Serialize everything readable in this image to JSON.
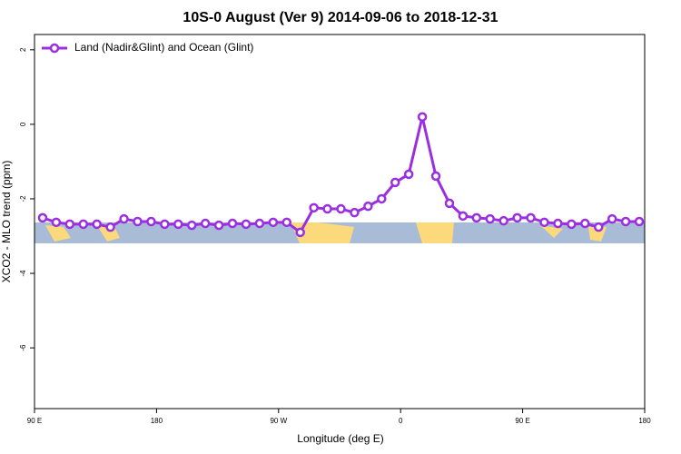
{
  "chart_data": {
    "type": "line",
    "title": "10S-0 August (Ver 9)   2014-09-06 to 2018-12-31",
    "xlabel": "Longitude (deg E)",
    "ylabel": "XCO2 - MLO trend (ppm)",
    "xlim": [
      90,
      540
    ],
    "ylim": [
      -7.63,
      2.41
    ],
    "xticks": [
      {
        "value": 90,
        "label": "90 E"
      },
      {
        "value": 180,
        "label": "180"
      },
      {
        "value": 270,
        "label": "90 W"
      },
      {
        "value": 360,
        "label": "0"
      },
      {
        "value": 450,
        "label": "90 E"
      },
      {
        "value": 540,
        "label": "180"
      }
    ],
    "yticks": [
      2,
      0,
      -2,
      -4,
      -6
    ],
    "legend": "top-left",
    "x": [
      96,
      106,
      116,
      126,
      136,
      146,
      156,
      166,
      176,
      186,
      196,
      206,
      216,
      226,
      236,
      246,
      256,
      266,
      276,
      286,
      296,
      306,
      316,
      326,
      336,
      346,
      356,
      366,
      376,
      386,
      396,
      406,
      416,
      426,
      436,
      446,
      456,
      466,
      476,
      486,
      496,
      506,
      516,
      526,
      536
    ],
    "series": [
      {
        "name": "Land (Nadir&Glint) and Ocean (Glint)",
        "color": "#9b2fe0",
        "values": [
          -2.51,
          -2.63,
          -2.68,
          -2.68,
          -2.68,
          -2.76,
          -2.54,
          -2.61,
          -2.61,
          -2.68,
          -2.68,
          -2.71,
          -2.66,
          -2.71,
          -2.66,
          -2.68,
          -2.66,
          -2.63,
          -2.63,
          -2.9,
          -2.24,
          -2.27,
          -2.27,
          -2.37,
          -2.2,
          -2.0,
          -1.56,
          -1.34,
          0.2,
          -1.39,
          -2.12,
          -2.46,
          -2.51,
          -2.54,
          -2.59,
          -2.51,
          -2.51,
          -2.63,
          -2.66,
          -2.68,
          -2.66,
          -2.76,
          -2.54,
          -2.61,
          -2.61
        ]
      }
    ]
  }
}
